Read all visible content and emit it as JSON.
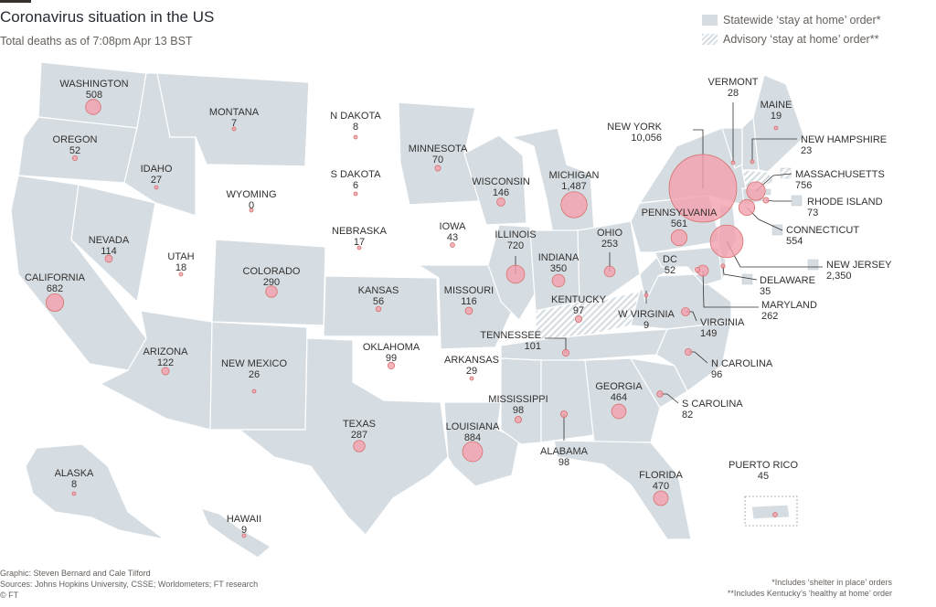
{
  "title": "Coronavirus situation in the US",
  "subtitle": "Total deaths as of 7:08pm Apr 13 BST",
  "legend": {
    "statewide": "Statewide ‘stay at home’ order*",
    "advisory": "Advisory ‘stay at home’ order**"
  },
  "colors": {
    "statewide": "#d5dde3",
    "advisory_hatch": "#d5dde3",
    "none": "#ffffff",
    "bubble": "#f2a0ad",
    "bubble_stroke": "#d7706c"
  },
  "states": [
    {
      "name": "WASHINGTON",
      "deaths": "508",
      "value": 508,
      "order": "statewide"
    },
    {
      "name": "OREGON",
      "deaths": "52",
      "value": 52,
      "order": "statewide"
    },
    {
      "name": "CALIFORNIA",
      "deaths": "682",
      "value": 682,
      "order": "statewide"
    },
    {
      "name": "NEVADA",
      "deaths": "114",
      "value": 114,
      "order": "statewide"
    },
    {
      "name": "IDAHO",
      "deaths": "27",
      "value": 27,
      "order": "statewide"
    },
    {
      "name": "MONTANA",
      "deaths": "7",
      "value": 7,
      "order": "statewide"
    },
    {
      "name": "WYOMING",
      "deaths": "0",
      "value": 0,
      "order": "none"
    },
    {
      "name": "UTAH",
      "deaths": "18",
      "value": 18,
      "order": "none"
    },
    {
      "name": "ARIZONA",
      "deaths": "122",
      "value": 122,
      "order": "statewide"
    },
    {
      "name": "COLORADO",
      "deaths": "290",
      "value": 290,
      "order": "statewide"
    },
    {
      "name": "NEW MEXICO",
      "deaths": "26",
      "value": 26,
      "order": "statewide"
    },
    {
      "name": "N DAKOTA",
      "deaths": "8",
      "value": 8,
      "order": "none"
    },
    {
      "name": "S DAKOTA",
      "deaths": "6",
      "value": 6,
      "order": "none"
    },
    {
      "name": "NEBRASKA",
      "deaths": "17",
      "value": 17,
      "order": "none"
    },
    {
      "name": "KANSAS",
      "deaths": "56",
      "value": 56,
      "order": "statewide"
    },
    {
      "name": "OKLAHOMA",
      "deaths": "99",
      "value": 99,
      "order": "none"
    },
    {
      "name": "TEXAS",
      "deaths": "287",
      "value": 287,
      "order": "statewide"
    },
    {
      "name": "MINNESOTA",
      "deaths": "70",
      "value": 70,
      "order": "statewide"
    },
    {
      "name": "IOWA",
      "deaths": "43",
      "value": 43,
      "order": "none"
    },
    {
      "name": "MISSOURI",
      "deaths": "116",
      "value": 116,
      "order": "statewide"
    },
    {
      "name": "ARKANSAS",
      "deaths": "29",
      "value": 29,
      "order": "none"
    },
    {
      "name": "LOUISIANA",
      "deaths": "884",
      "value": 884,
      "order": "statewide"
    },
    {
      "name": "WISCONSIN",
      "deaths": "146",
      "value": 146,
      "order": "statewide"
    },
    {
      "name": "ILLINOIS",
      "deaths": "720",
      "value": 720,
      "order": "statewide"
    },
    {
      "name": "MICHIGAN",
      "deaths": "1,487",
      "value": 1487,
      "order": "statewide"
    },
    {
      "name": "INDIANA",
      "deaths": "350",
      "value": 350,
      "order": "statewide"
    },
    {
      "name": "OHIO",
      "deaths": "253",
      "value": 253,
      "order": "statewide"
    },
    {
      "name": "KENTUCKY",
      "deaths": "97",
      "value": 97,
      "order": "advisory"
    },
    {
      "name": "TENNESSEE",
      "deaths": "101",
      "value": 101,
      "order": "statewide"
    },
    {
      "name": "MISSISSIPPI",
      "deaths": "98",
      "value": 98,
      "order": "statewide"
    },
    {
      "name": "ALABAMA",
      "deaths": "98",
      "value": 98,
      "order": "statewide"
    },
    {
      "name": "GEORGIA",
      "deaths": "464",
      "value": 464,
      "order": "statewide"
    },
    {
      "name": "FLORIDA",
      "deaths": "470",
      "value": 470,
      "order": "statewide"
    },
    {
      "name": "S CAROLINA",
      "deaths": "82",
      "value": 82,
      "order": "statewide"
    },
    {
      "name": "N CAROLINA",
      "deaths": "96",
      "value": 96,
      "order": "statewide"
    },
    {
      "name": "VIRGINIA",
      "deaths": "149",
      "value": 149,
      "order": "statewide"
    },
    {
      "name": "W VIRGINIA",
      "deaths": "9",
      "value": 9,
      "order": "statewide"
    },
    {
      "name": "PENNSYLVANIA",
      "deaths": "561",
      "value": 561,
      "order": "statewide"
    },
    {
      "name": "NEW YORK",
      "deaths": "10,056",
      "value": 10056,
      "order": "statewide"
    },
    {
      "name": "VERMONT",
      "deaths": "28",
      "value": 28,
      "order": "statewide"
    },
    {
      "name": "MAINE",
      "deaths": "19",
      "value": 19,
      "order": "statewide"
    },
    {
      "name": "NEW HAMPSHIRE",
      "deaths": "23",
      "value": 23,
      "order": "statewide"
    },
    {
      "name": "MASSACHUSETTS",
      "deaths": "756",
      "value": 756,
      "order": "advisory"
    },
    {
      "name": "RHODE ISLAND",
      "deaths": "73",
      "value": 73,
      "order": "statewide"
    },
    {
      "name": "CONNECTICUT",
      "deaths": "554",
      "value": 554,
      "order": "statewide"
    },
    {
      "name": "NEW JERSEY",
      "deaths": "2,350",
      "value": 2350,
      "order": "statewide"
    },
    {
      "name": "DELAWARE",
      "deaths": "35",
      "value": 35,
      "order": "statewide"
    },
    {
      "name": "MARYLAND",
      "deaths": "262",
      "value": 262,
      "order": "statewide"
    },
    {
      "name": "DC",
      "deaths": "52",
      "value": 52,
      "order": "statewide"
    },
    {
      "name": "ALASKA",
      "deaths": "8",
      "value": 8,
      "order": "statewide"
    },
    {
      "name": "HAWAII",
      "deaths": "9",
      "value": 9,
      "order": "statewide"
    },
    {
      "name": "PUERTO RICO",
      "deaths": "45",
      "value": 45,
      "order": "statewide"
    }
  ],
  "footer": {
    "graphic": "Graphic: Steven Bernard and Cale Tilford",
    "sources": "Sources: Johns Hopkins University, CSSE; Worldometers; FT research",
    "copyright": "© FT"
  },
  "notes": {
    "note1": "*Includes ‘shelter in place’ orders",
    "note2": "**Includes Kentucky’s ‘healthy at home’ order"
  }
}
